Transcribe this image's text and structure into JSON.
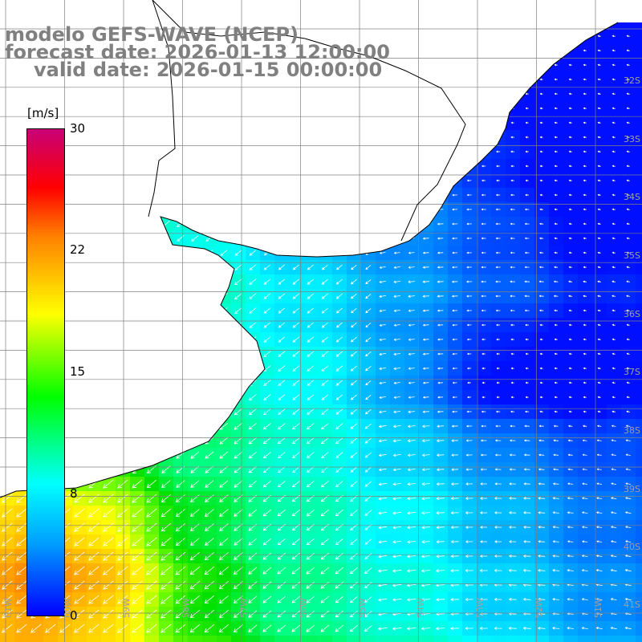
{
  "title": {
    "line1": "modelo GEFS-WAVE (NCEP)",
    "line2": "forecast date: 2026-01-13 12:00:00",
    "line3": "valid date: 2026-01-15 00:00:00"
  },
  "colorbar": {
    "units": "[m/s]",
    "ticks": [
      "30",
      "22",
      "15",
      "8",
      "0"
    ],
    "tick_values": [
      30,
      22,
      15,
      8,
      0
    ],
    "min": 0,
    "max": 30,
    "colors": [
      "#0000ff",
      "#00a0ff",
      "#00ffff",
      "#00ff00",
      "#ffff00",
      "#ff8000",
      "#ff0000",
      "#c80078"
    ]
  },
  "lat_labels": [
    "32S",
    "33S",
    "34S",
    "35S",
    "36S",
    "37S",
    "38S",
    "39S",
    "40S",
    "41S"
  ],
  "lon_labels": [
    "61W",
    "60W",
    "59W",
    "58W",
    "57W",
    "56W",
    "55W",
    "54W",
    "53W",
    "52W",
    "51W"
  ],
  "colors": {
    "land": "#ffffff",
    "coast": "#000000",
    "grid": "#808080",
    "arrow": "#ffffff"
  }
}
